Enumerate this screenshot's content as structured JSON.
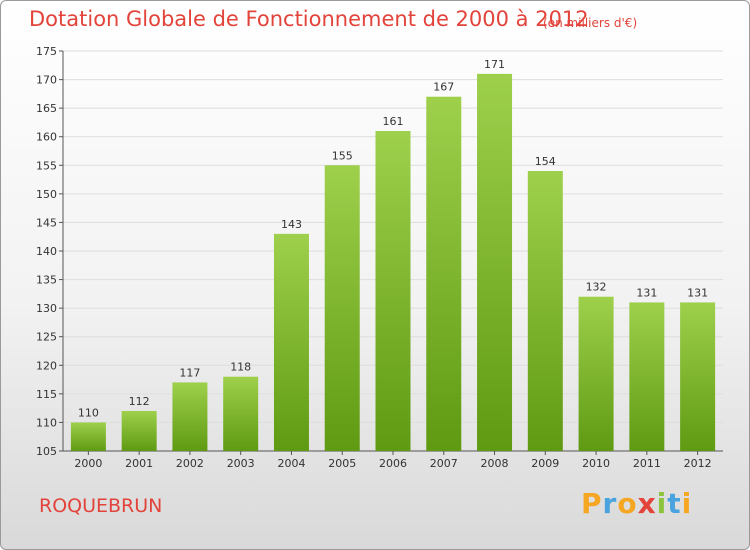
{
  "chart_data": {
    "type": "bar",
    "title": "Dotation Globale de Fonctionnement de 2000 à 2012",
    "unit": "(en milliers d'€)",
    "xlabel": "",
    "ylabel": "",
    "categories": [
      "2000",
      "2001",
      "2002",
      "2003",
      "2004",
      "2005",
      "2006",
      "2007",
      "2008",
      "2009",
      "2010",
      "2011",
      "2012"
    ],
    "values": [
      110,
      112,
      117,
      118,
      143,
      155,
      161,
      167,
      171,
      154,
      132,
      131,
      131
    ],
    "ylim": [
      105,
      175
    ],
    "yticks": [
      105,
      110,
      115,
      120,
      125,
      130,
      135,
      140,
      145,
      150,
      155,
      160,
      165,
      170,
      175
    ],
    "grid": true,
    "legend": "none",
    "bar_color": "#8cc43c",
    "bar_color_dark": "#5f9a12"
  },
  "commune": "ROQUEBRUN",
  "logo": {
    "letters": [
      "P",
      "r",
      "o",
      "x",
      "i",
      "t",
      "i"
    ],
    "colors": [
      "#f5a623",
      "#4aa3df",
      "#f5a623",
      "#e2433a",
      "#8cc43c",
      "#4aa3df",
      "#f5a623"
    ]
  },
  "colors": {
    "accent": "#e2433a"
  }
}
